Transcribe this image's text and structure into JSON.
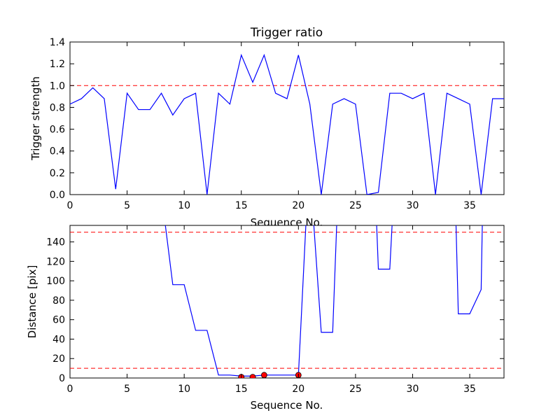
{
  "chart_data": [
    {
      "type": "line",
      "title": "Trigger ratio",
      "xlabel": "Sequence No.",
      "ylabel": "Trigger strength",
      "xlim": [
        0,
        38
      ],
      "ylim": [
        0,
        1.4
      ],
      "xticks": [
        0,
        5,
        10,
        15,
        20,
        25,
        30,
        35
      ],
      "yticks": [
        0.0,
        0.2,
        0.4,
        0.6,
        0.8,
        1.0,
        1.2,
        1.4
      ],
      "ytick_labels": [
        "0.0",
        "0.2",
        "0.4",
        "0.6",
        "0.8",
        "1.0",
        "1.2",
        "1.4"
      ],
      "grid": false,
      "reference_lines": [
        {
          "y": 1.0,
          "style": "dashed",
          "color": "#ff0000"
        }
      ],
      "series": [
        {
          "color": "#0000ff",
          "x": [
            0,
            1,
            2,
            3,
            4,
            5,
            6,
            7,
            8,
            9,
            10,
            11,
            12,
            13,
            14,
            15,
            16,
            17,
            18,
            19,
            20,
            21,
            22,
            23,
            24,
            25,
            26,
            27,
            28,
            29,
            30,
            31,
            32,
            33,
            34,
            35,
            36,
            37,
            38
          ],
          "y": [
            0.83,
            0.88,
            0.98,
            0.88,
            0.05,
            0.93,
            0.78,
            0.78,
            0.93,
            0.73,
            0.88,
            0.93,
            0.0,
            0.93,
            0.83,
            1.28,
            1.03,
            1.28,
            0.93,
            0.88,
            1.28,
            0.83,
            0.0,
            0.83,
            0.88,
            0.83,
            0.0,
            0.02,
            0.93,
            0.93,
            0.88,
            0.93,
            0.0,
            0.93,
            0.88,
            0.83,
            0.0,
            0.88,
            0.88
          ]
        }
      ]
    },
    {
      "type": "line",
      "xlabel": "Sequence No.",
      "ylabel": "Distance [pix]",
      "xlim": [
        0,
        38
      ],
      "ylim": [
        0,
        157
      ],
      "xticks": [
        0,
        5,
        10,
        15,
        20,
        25,
        30,
        35
      ],
      "yticks": [
        0,
        20,
        40,
        60,
        80,
        100,
        120,
        140
      ],
      "ytick_labels": [
        "0",
        "20",
        "40",
        "60",
        "80",
        "100",
        "120",
        "140"
      ],
      "grid": false,
      "reference_lines": [
        {
          "y": 150,
          "style": "dashed",
          "color": "#ff0000"
        },
        {
          "y": 10,
          "style": "dashed",
          "color": "#ff0000"
        }
      ],
      "series": [
        {
          "color": "#0000ff",
          "segments": [
            {
              "x": [
                8.35,
                9,
                10,
                11,
                12,
                13,
                14,
                15,
                16,
                17,
                18,
                19,
                20,
                20.65
              ],
              "y": [
                157,
                96,
                96,
                49,
                49,
                3,
                3,
                2,
                2,
                3,
                3,
                3,
                3,
                157
              ]
            },
            {
              "x": [
                21.35,
                22,
                23,
                23.35
              ],
              "y": [
                157,
                47,
                47,
                157
              ]
            },
            {
              "x": [
                26.85,
                27,
                28,
                28.2
              ],
              "y": [
                157,
                112,
                112,
                157
              ]
            },
            {
              "x": [
                33.8,
                34,
                35,
                36,
                36.1
              ],
              "y": [
                157,
                66,
                66,
                91,
                157
              ]
            }
          ]
        }
      ],
      "markers": {
        "color": "#ff0000",
        "x": [
          15,
          16,
          17,
          20
        ],
        "y": [
          1,
          1,
          3,
          3
        ]
      }
    }
  ]
}
